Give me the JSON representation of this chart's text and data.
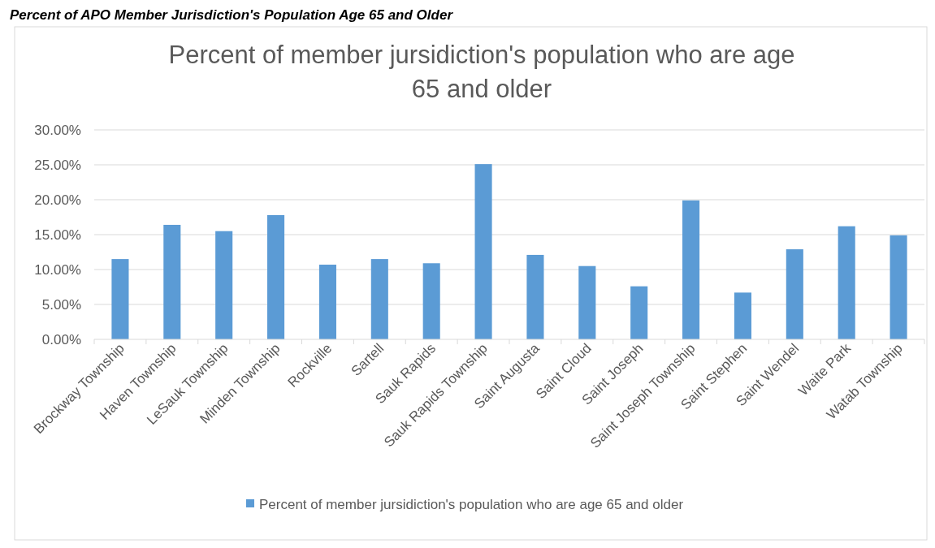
{
  "chart_data": {
    "type": "bar",
    "title": "Percent of member jursidiction's population who are age 65 and older",
    "annotations": [
      "Percent of APO Member Jurisdiction's Population Age 65 and Older"
    ],
    "categories": [
      "Brockway Township",
      "Haven Township",
      "LeSauk Township",
      "Minden Township",
      "Rockville",
      "Sartell",
      "Sauk Rapids",
      "Sauk Rapids Township",
      "Saint Augusta",
      "Saint Cloud",
      "Saint Joseph",
      "Saint Joseph Township",
      "Saint Stephen",
      "Saint Wendel",
      "Waite Park",
      "Watab Township"
    ],
    "series": [
      {
        "name": "Percent of member jursidiction's population who are age 65 and older",
        "color": "#5b9bd5",
        "values": [
          11.5,
          16.4,
          15.5,
          17.8,
          10.7,
          11.5,
          10.9,
          25.1,
          12.1,
          10.5,
          7.6,
          19.9,
          6.7,
          12.9,
          16.2,
          14.9
        ]
      }
    ],
    "ylim": [
      0,
      30
    ],
    "yticks": [
      {
        "value": 0,
        "label": "0.00%"
      },
      {
        "value": 5,
        "label": "5.00%"
      },
      {
        "value": 10,
        "label": "10.00%"
      },
      {
        "value": 15,
        "label": "15.00%"
      },
      {
        "value": 20,
        "label": "20.00%"
      },
      {
        "value": 25,
        "label": "25.00%"
      },
      {
        "value": 30,
        "label": "30.00%"
      }
    ],
    "grid": "y",
    "legend": "bottom"
  }
}
